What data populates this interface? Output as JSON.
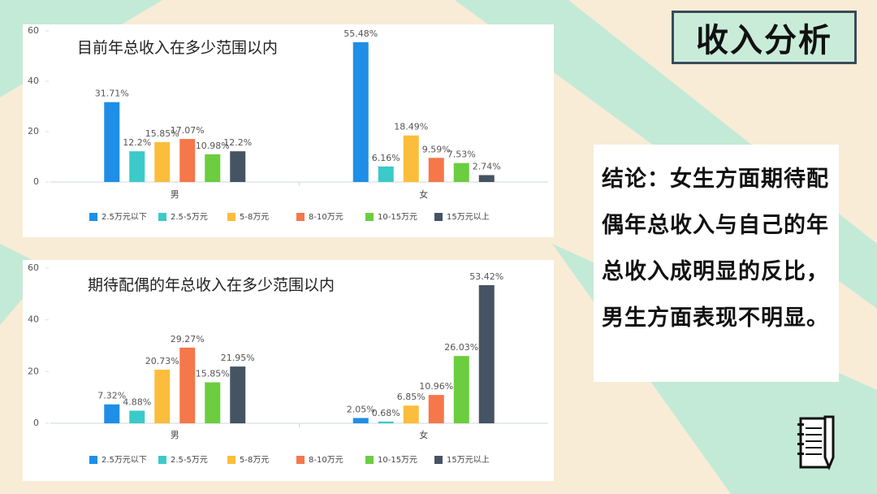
{
  "slide_title": "收入分析",
  "conclusion": "结论：女生方面期待配偶年总收入与自己的年总收入成明显的反比，男生方面表现不明显。",
  "chart_data": [
    {
      "type": "bar",
      "title": "目前年总收入在多少范围以内",
      "categories": [
        "男",
        "女"
      ],
      "ylim": [
        0,
        60
      ],
      "yticks": [
        0,
        20,
        40,
        60
      ],
      "legend": "bottom",
      "series": [
        {
          "name": "2.5万元以下",
          "color": "#1f8ee6",
          "values": [
            31.71,
            55.48
          ],
          "value_labels": [
            "31.71%",
            "55.48%"
          ]
        },
        {
          "name": "2.5-5万元",
          "color": "#3cc9c9",
          "values": [
            12.2,
            6.16
          ],
          "value_labels": [
            "12.2%",
            "6.16%"
          ]
        },
        {
          "name": "5-8万元",
          "color": "#fbbd3b",
          "values": [
            15.85,
            18.49
          ],
          "value_labels": [
            "15.85%",
            "18.49%"
          ]
        },
        {
          "name": "8-10万元",
          "color": "#f5774a",
          "values": [
            17.07,
            9.59
          ],
          "value_labels": [
            "17.07%",
            "9.59%"
          ]
        },
        {
          "name": "10-15万元",
          "color": "#6ccd3f",
          "values": [
            10.98,
            7.53
          ],
          "value_labels": [
            "10.98%",
            "7.53%"
          ]
        },
        {
          "name": "15万元以上",
          "color": "#455463",
          "values": [
            12.2,
            2.74
          ],
          "value_labels": [
            "12.2%",
            "2.74%"
          ]
        }
      ]
    },
    {
      "type": "bar",
      "title": "期待配偶的年总收入在多少范围以内",
      "categories": [
        "男",
        "女"
      ],
      "ylim": [
        0,
        60
      ],
      "yticks": [
        0,
        20,
        40,
        60
      ],
      "legend": "bottom",
      "series": [
        {
          "name": "2.5万元以下",
          "color": "#1f8ee6",
          "values": [
            7.32,
            2.05
          ],
          "value_labels": [
            "7.32%",
            "2.05%"
          ]
        },
        {
          "name": "2.5-5万元",
          "color": "#3cc9c9",
          "values": [
            4.88,
            0.68
          ],
          "value_labels": [
            "4.88%",
            "0.68%"
          ]
        },
        {
          "name": "5-8万元",
          "color": "#fbbd3b",
          "values": [
            20.73,
            6.85
          ],
          "value_labels": [
            "20.73%",
            "6.85%"
          ]
        },
        {
          "name": "8-10万元",
          "color": "#f5774a",
          "values": [
            29.27,
            10.96
          ],
          "value_labels": [
            "29.27%",
            "10.96%"
          ]
        },
        {
          "name": "10-15万元",
          "color": "#6ccd3f",
          "values": [
            15.85,
            26.03
          ],
          "value_labels": [
            "15.85%",
            "26.03%"
          ]
        },
        {
          "name": "15万元以上",
          "color": "#455463",
          "values": [
            21.95,
            53.42
          ],
          "value_labels": [
            "21.95%",
            "53.42%"
          ]
        }
      ]
    }
  ]
}
